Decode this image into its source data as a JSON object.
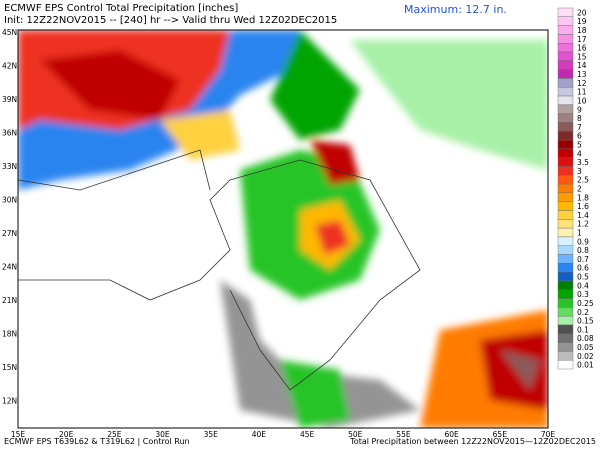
{
  "header": {
    "title": "ECMWF EPS Control Total Precipitation [inches]",
    "init": "Init: 12Z22NOV2015 -- [240] hr --> Valid thru Wed 12Z02DEC2015",
    "maximum": "Maximum:  12.7 in."
  },
  "legend": [
    {
      "label": "20",
      "color": "#fde0f8"
    },
    {
      "label": "19",
      "color": "#fbc8f2"
    },
    {
      "label": "18",
      "color": "#f8aeec"
    },
    {
      "label": "17",
      "color": "#f490e4"
    },
    {
      "label": "16",
      "color": "#ee70da"
    },
    {
      "label": "15",
      "color": "#e452ce"
    },
    {
      "label": "14",
      "color": "#d43cbe"
    },
    {
      "label": "13",
      "color": "#c02aac"
    },
    {
      "label": "12",
      "color": "#a0a0c8"
    },
    {
      "label": "11",
      "color": "#c8c8dc"
    },
    {
      "label": "10",
      "color": "#e4e4ec"
    },
    {
      "label": "9",
      "color": "#b0a0a0"
    },
    {
      "label": "8",
      "color": "#a08080"
    },
    {
      "label": "7",
      "color": "#8c5a5a"
    },
    {
      "label": "6",
      "color": "#7a2c2c"
    },
    {
      "label": "5",
      "color": "#980000"
    },
    {
      "label": "4",
      "color": "#c00000"
    },
    {
      "label": "3.5",
      "color": "#dc1010"
    },
    {
      "label": "3",
      "color": "#ee3020"
    },
    {
      "label": "2.5",
      "color": "#ff5a10"
    },
    {
      "label": "2",
      "color": "#ff7c00"
    },
    {
      "label": "1.8",
      "color": "#ff9c00"
    },
    {
      "label": "1.6",
      "color": "#ffb800"
    },
    {
      "label": "1.4",
      "color": "#ffd040"
    },
    {
      "label": "1.2",
      "color": "#ffe27a"
    },
    {
      "label": "1",
      "color": "#fff2b0"
    },
    {
      "label": "0.9",
      "color": "#d8f0ff"
    },
    {
      "label": "0.8",
      "color": "#a8d8ff"
    },
    {
      "label": "0.7",
      "color": "#6cb4ff"
    },
    {
      "label": "0.6",
      "color": "#2c84f0"
    },
    {
      "label": "0.5",
      "color": "#1060c8"
    },
    {
      "label": "0.4",
      "color": "#008000"
    },
    {
      "label": "0.3",
      "color": "#00a400"
    },
    {
      "label": "0.25",
      "color": "#28c428"
    },
    {
      "label": "0.2",
      "color": "#64dc64"
    },
    {
      "label": "0.15",
      "color": "#a8f0a8"
    },
    {
      "label": "0.1",
      "color": "#505050"
    },
    {
      "label": "0.08",
      "color": "#707070"
    },
    {
      "label": "0.05",
      "color": "#949494"
    },
    {
      "label": "0.02",
      "color": "#bcbcbc"
    },
    {
      "label": "0.01",
      "color": "#ffffff"
    }
  ],
  "axes": {
    "lat_labels": [
      "45N",
      "42N",
      "39N",
      "36N",
      "33N",
      "30N",
      "27N",
      "24N",
      "21N",
      "18N",
      "15N",
      "12N"
    ],
    "lon_labels": [
      "15E",
      "20E",
      "25E",
      "30E",
      "35E",
      "40E",
      "45E",
      "50E",
      "55E",
      "60E",
      "65E",
      "70E"
    ]
  },
  "footer": {
    "left": "ECMWF EPS T639L62 & T319L62 | Control Run",
    "right": "Total Precipitation between 12Z22NOV2015—12Z02DEC2015"
  }
}
